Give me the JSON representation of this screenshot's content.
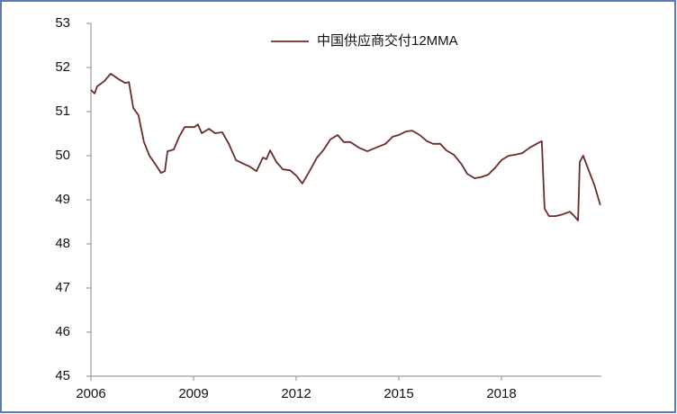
{
  "chart_data": {
    "type": "line",
    "series": [
      {
        "name": "中国供应商交付12MMA",
        "color": "#6b2b2b",
        "x": [
          2006.0,
          2006.11,
          2006.18,
          2006.39,
          2006.58,
          2006.82,
          2007.0,
          2007.11,
          2007.24,
          2007.39,
          2007.55,
          2007.71,
          2007.87,
          2008.05,
          2008.16,
          2008.24,
          2008.42,
          2008.58,
          2008.74,
          2009.03,
          2009.13,
          2009.24,
          2009.45,
          2009.63,
          2009.84,
          2010.03,
          2010.24,
          2010.45,
          2010.63,
          2010.84,
          2011.03,
          2011.13,
          2011.24,
          2011.42,
          2011.61,
          2011.82,
          2012.0,
          2012.18,
          2012.39,
          2012.61,
          2012.79,
          2013.0,
          2013.21,
          2013.39,
          2013.58,
          2013.84,
          2014.08,
          2014.39,
          2014.61,
          2014.82,
          2015.0,
          2015.21,
          2015.39,
          2015.61,
          2015.82,
          2016.0,
          2016.21,
          2016.39,
          2016.61,
          2016.82,
          2017.0,
          2017.21,
          2017.39,
          2017.61,
          2017.82,
          2018.0,
          2018.21,
          2018.39,
          2018.61,
          2018.82,
          2019.03,
          2019.18,
          2019.26,
          2019.39,
          2019.58,
          2019.79,
          2020.0,
          2020.13,
          2020.24,
          2020.29,
          2020.39,
          2020.58,
          2020.71,
          2020.89
        ],
        "values": [
          51.49,
          51.41,
          51.57,
          51.69,
          51.86,
          51.73,
          51.65,
          51.67,
          51.08,
          50.92,
          50.31,
          50.0,
          49.82,
          49.61,
          49.65,
          50.1,
          50.14,
          50.43,
          50.65,
          50.65,
          50.71,
          50.51,
          50.61,
          50.51,
          50.53,
          50.27,
          49.9,
          49.82,
          49.76,
          49.65,
          49.96,
          49.92,
          50.12,
          49.86,
          49.69,
          49.67,
          49.55,
          49.37,
          49.65,
          49.96,
          50.12,
          50.37,
          50.47,
          50.31,
          50.31,
          50.18,
          50.1,
          50.2,
          50.27,
          50.43,
          50.47,
          50.55,
          50.57,
          50.47,
          50.33,
          50.27,
          50.27,
          50.12,
          50.02,
          49.82,
          49.59,
          49.49,
          49.51,
          49.57,
          49.73,
          49.9,
          50.0,
          50.02,
          50.06,
          50.18,
          50.27,
          50.33,
          48.8,
          48.63,
          48.63,
          48.67,
          48.73,
          48.63,
          48.53,
          49.86,
          50.0,
          49.61,
          49.35,
          48.88
        ]
      }
    ],
    "xlim": [
      2006,
      2021
    ],
    "xticks": [
      2006,
      2009,
      2012,
      2015,
      2018
    ],
    "ylim": [
      45,
      53
    ],
    "yticks": [
      45,
      46,
      47,
      48,
      49,
      50,
      51,
      52,
      53
    ],
    "legend": "top"
  }
}
